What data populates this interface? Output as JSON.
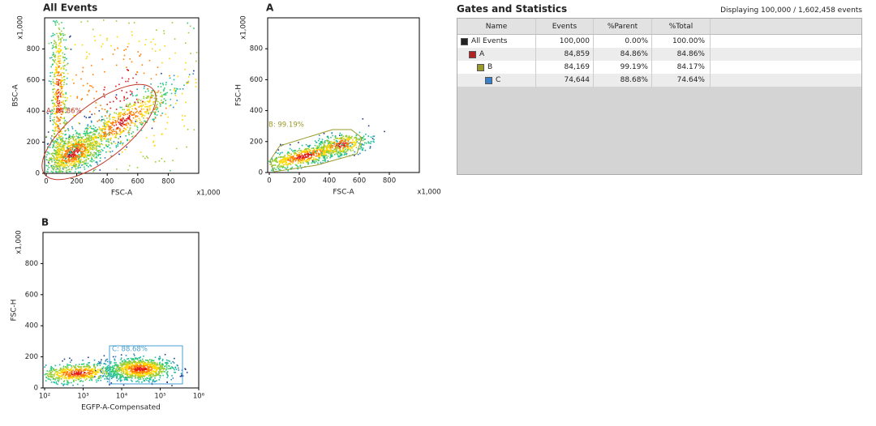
{
  "plots": [
    {
      "title": "All Events",
      "x_label": "FSC-A",
      "y_label": "BSC-A",
      "x_scale_label": "x1,000",
      "y_scale_label": "x1,000",
      "x_ticks": [
        "0",
        "200",
        "400",
        "600",
        "800"
      ],
      "y_ticks": [
        "0",
        "200",
        "400",
        "600",
        "800"
      ],
      "gate_label": "A: 84.86%",
      "gate_color": "#c0392b"
    },
    {
      "title": "A",
      "x_label": "FSC-A",
      "y_label": "FSC-H",
      "x_scale_label": "x1,000",
      "y_scale_label": "x1,000",
      "x_ticks": [
        "0",
        "200",
        "400",
        "600",
        "800"
      ],
      "y_ticks": [
        "0",
        "200",
        "400",
        "600",
        "800"
      ],
      "gate_label": "B: 99.19%",
      "gate_color": "#9a9a2a"
    },
    {
      "title": "B",
      "x_label": "EGFP-A-Compensated",
      "y_label": "FSC-H",
      "y_scale_label": "x1,000",
      "x_ticks": [
        "10²",
        "10³",
        "10⁴",
        "10⁵",
        "10⁶"
      ],
      "y_ticks": [
        "0",
        "200",
        "400",
        "600",
        "800"
      ],
      "gate_label": "C: 88.68%",
      "gate_color": "#4a9fd0"
    }
  ],
  "table": {
    "title": "Gates and Statistics",
    "status": "Displaying 100,000 / 1,602,458 events",
    "columns": [
      "Name",
      "Events",
      "%Parent",
      "%Total"
    ],
    "rows": [
      {
        "name": "All Events",
        "color": "#222222",
        "events": "100,000",
        "parent": "0.00%",
        "total": "100.00%"
      },
      {
        "name": "A",
        "color": "#b22222",
        "events": "84,859",
        "parent": "84.86%",
        "total": "84.86%"
      },
      {
        "name": "B",
        "color": "#9a9a2a",
        "events": "84,169",
        "parent": "99.19%",
        "total": "84.17%"
      },
      {
        "name": "C",
        "color": "#3a80c8",
        "events": "74,644",
        "parent": "88.68%",
        "total": "74.64%"
      }
    ]
  }
}
